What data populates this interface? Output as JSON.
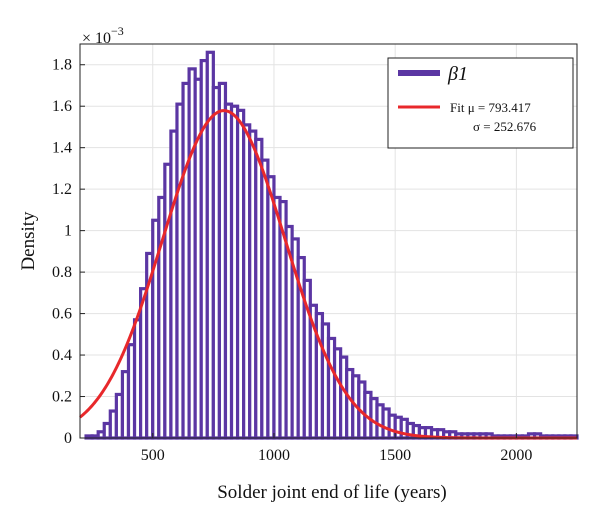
{
  "chart_data": {
    "type": "bar",
    "title": "",
    "xlabel": "Solder joint end of life (years)",
    "ylabel": "Density",
    "y_multiplier": "× 10",
    "y_multiplier_exp": "−3",
    "xlim": [
      200,
      2250
    ],
    "ylim": [
      0,
      1.9
    ],
    "xticks": [
      500,
      1000,
      1500,
      2000
    ],
    "yticks": [
      0,
      0.2,
      0.4,
      0.6,
      0.8,
      1,
      1.2,
      1.4,
      1.6,
      1.8
    ],
    "ytick_labels": [
      "0",
      "0.2",
      "0.4",
      "0.6",
      "0.8",
      "1",
      "1.2",
      "1.4",
      "1.6",
      "1.8"
    ],
    "grid": true,
    "legend_position": "top-right",
    "colors": {
      "histogram": "#5b36a3",
      "fit": "#e8282b"
    },
    "histogram": {
      "name": "β1",
      "bin_start": 225,
      "bin_width": 25,
      "values": [
        0.01,
        0.01,
        0.03,
        0.07,
        0.13,
        0.21,
        0.32,
        0.45,
        0.57,
        0.72,
        0.89,
        1.05,
        1.16,
        1.32,
        1.48,
        1.61,
        1.71,
        1.78,
        1.73,
        1.82,
        1.86,
        1.69,
        1.71,
        1.61,
        1.6,
        1.58,
        1.51,
        1.48,
        1.44,
        1.34,
        1.26,
        1.16,
        1.14,
        1.02,
        0.96,
        0.87,
        0.76,
        0.64,
        0.6,
        0.55,
        0.48,
        0.43,
        0.39,
        0.33,
        0.3,
        0.27,
        0.22,
        0.19,
        0.16,
        0.14,
        0.11,
        0.1,
        0.09,
        0.07,
        0.06,
        0.05,
        0.05,
        0.04,
        0.04,
        0.03,
        0.03,
        0.02,
        0.02,
        0.02,
        0.02,
        0.02,
        0.02,
        0.01,
        0.01,
        0.01,
        0.01,
        0.01,
        0.01,
        0.02,
        0.02,
        0.01,
        0.01,
        0.01,
        0.01,
        0.01,
        0.01
      ]
    },
    "fit": {
      "name": "Fit",
      "mu_label": "Fit μ = 793.417",
      "sigma_label": "σ = 252.676",
      "mu": 793.417,
      "sigma": 252.676
    }
  }
}
